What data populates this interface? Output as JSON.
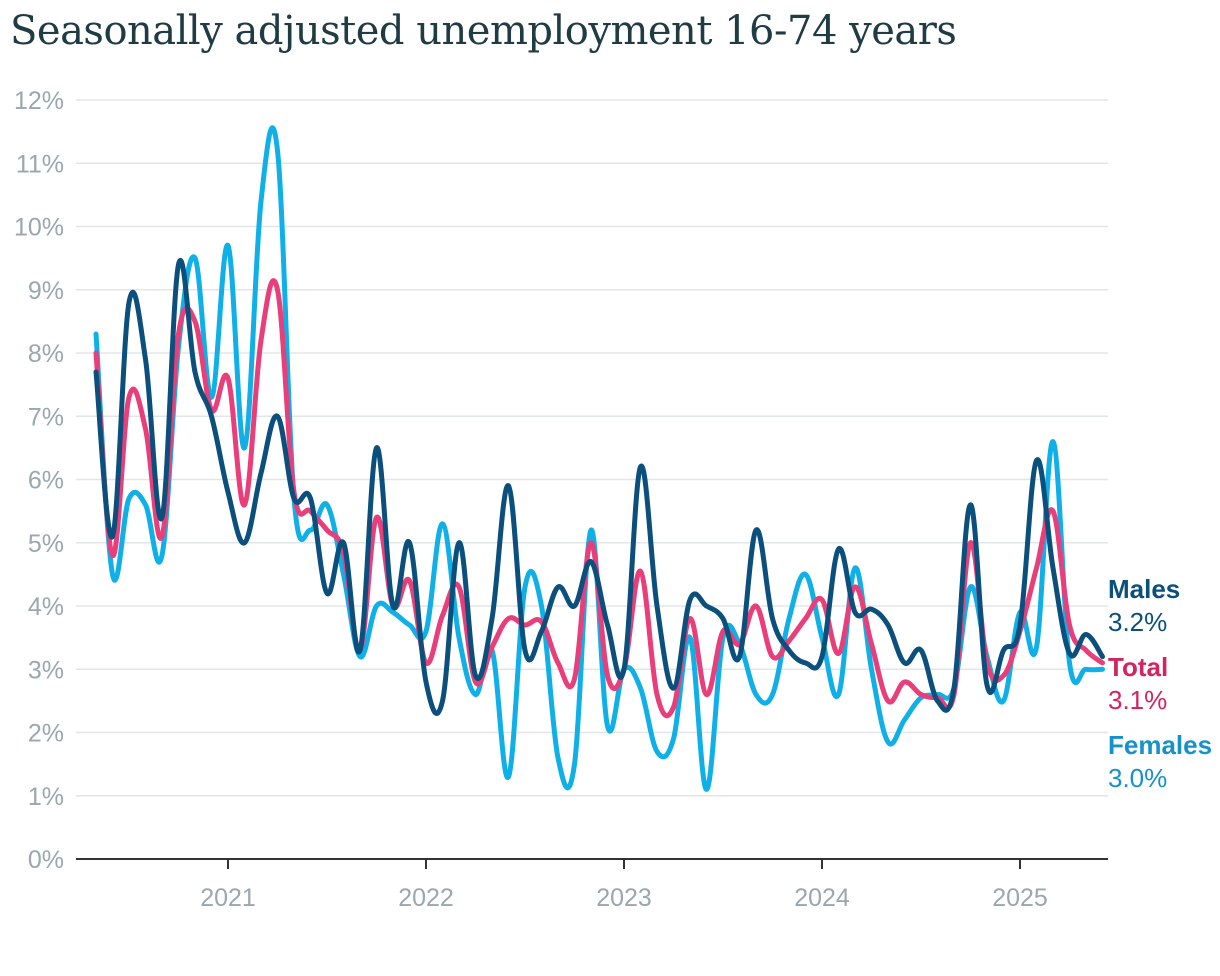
{
  "title": "Seasonally adjusted unemployment 16-74 years",
  "chart_data": {
    "type": "line",
    "title": "Seasonally adjusted unemployment 16-74 years",
    "xlabel": "",
    "ylabel": "",
    "ylim": [
      0,
      12
    ],
    "y_ticks": [
      "0%",
      "1%",
      "2%",
      "3%",
      "4%",
      "5%",
      "6%",
      "7%",
      "8%",
      "9%",
      "10%",
      "11%",
      "12%"
    ],
    "x_ticks": [
      "2021",
      "2022",
      "2023",
      "2024",
      "2025"
    ],
    "grid": true,
    "legend_position": "right end labels",
    "x_start": "2020-05",
    "series": [
      {
        "name": "Males",
        "end_label": "3.2%",
        "color": "#0b4f7c",
        "label_color": "#0b4f7c",
        "values": [
          7.7,
          5.1,
          8.8,
          7.9,
          5.4,
          9.4,
          7.7,
          7.0,
          5.8,
          5.0,
          6.1,
          7.0,
          5.7,
          5.7,
          4.2,
          5.0,
          3.3,
          6.5,
          4.0,
          5.0,
          2.8,
          2.5,
          5.0,
          2.9,
          3.8,
          5.9,
          3.3,
          3.6,
          4.3,
          4.0,
          4.7,
          3.7,
          3.0,
          6.2,
          4.0,
          2.7,
          4.1,
          4.0,
          3.8,
          3.2,
          5.2,
          3.8,
          3.3,
          3.1,
          3.2,
          4.9,
          3.9,
          3.95,
          3.7,
          3.1,
          3.3,
          2.5,
          2.7,
          5.6,
          2.75,
          3.3,
          3.7,
          6.3,
          4.6,
          3.25,
          3.55,
          3.2
        ]
      },
      {
        "name": "Total",
        "end_label": "3.1%",
        "color": "#ea3e7a",
        "label_color": "#d4245f",
        "values": [
          8.0,
          4.8,
          7.3,
          6.8,
          5.1,
          8.3,
          8.5,
          7.1,
          7.6,
          5.6,
          8.2,
          9.0,
          5.8,
          5.5,
          5.2,
          4.85,
          3.3,
          5.4,
          4.0,
          4.4,
          3.1,
          3.85,
          4.3,
          2.8,
          3.35,
          3.8,
          3.7,
          3.75,
          3.1,
          2.85,
          5.0,
          2.9,
          3.0,
          4.55,
          2.6,
          2.4,
          3.8,
          2.6,
          3.6,
          3.4,
          4.0,
          3.2,
          3.45,
          3.8,
          4.1,
          3.25,
          4.3,
          3.4,
          2.5,
          2.8,
          2.6,
          2.55,
          2.6,
          5.0,
          3.1,
          2.9,
          3.6,
          4.6,
          5.5,
          3.7,
          3.3,
          3.1
        ]
      },
      {
        "name": "Females",
        "end_label": "3.0%",
        "color": "#0fb0e8",
        "label_color": "#1792c8",
        "values": [
          8.3,
          4.5,
          5.7,
          5.6,
          4.8,
          8.1,
          9.5,
          7.3,
          9.7,
          6.5,
          10.4,
          11.2,
          5.7,
          5.2,
          5.6,
          4.5,
          3.2,
          4.0,
          3.9,
          3.7,
          3.6,
          5.3,
          3.5,
          2.6,
          3.3,
          1.3,
          4.3,
          4.0,
          1.6,
          1.5,
          5.2,
          2.1,
          3.0,
          2.7,
          1.7,
          1.9,
          3.5,
          1.1,
          3.5,
          3.4,
          2.6,
          2.6,
          3.8,
          4.5,
          3.5,
          2.6,
          4.6,
          3.0,
          1.85,
          2.2,
          2.55,
          2.6,
          2.7,
          4.3,
          3.2,
          2.5,
          3.9,
          3.35,
          6.6,
          3.1,
          3.0,
          3.0
        ]
      }
    ]
  }
}
